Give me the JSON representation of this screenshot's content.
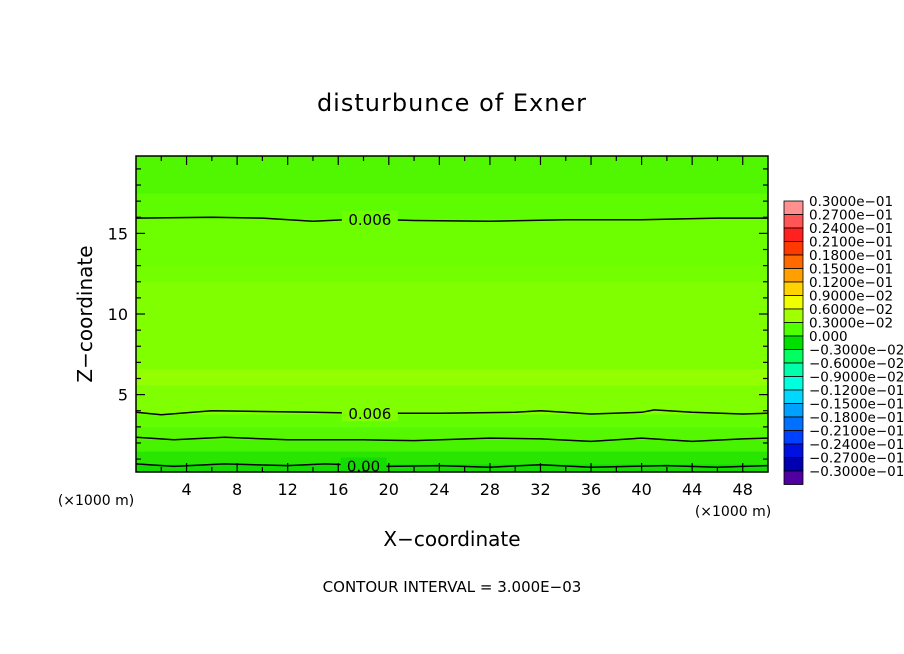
{
  "chart_data": {
    "type": "heatmap",
    "title": "disturbunce of Exner",
    "xlabel": "X−coordinate",
    "ylabel": "Z−coordinate",
    "x_unit_left": "(×1000 m)",
    "x_unit_right": "(×1000 m)",
    "xlim": [
      0,
      50
    ],
    "ylim": [
      0.2,
      19.8
    ],
    "x_ticks": [
      4,
      8,
      12,
      16,
      20,
      24,
      28,
      32,
      36,
      40,
      44,
      48
    ],
    "y_ticks": [
      5,
      10,
      15
    ],
    "grid": false,
    "footer": "CONTOUR INTERVAL = 3.000E−03",
    "bands": [
      {
        "z0": 0.2,
        "z1": 0.7,
        "value": 0.0015
      },
      {
        "z0": 0.7,
        "z1": 1.5,
        "value": 0.003
      },
      {
        "z0": 1.5,
        "z1": 2.2,
        "value": 0.0045
      },
      {
        "z0": 2.2,
        "z1": 3.0,
        "value": 0.0052
      },
      {
        "z0": 3.0,
        "z1": 3.8,
        "value": 0.0058
      },
      {
        "z0": 3.8,
        "z1": 5.6,
        "value": 0.0068
      },
      {
        "z0": 5.6,
        "z1": 6.6,
        "value": 0.0074
      },
      {
        "z0": 6.6,
        "z1": 12.0,
        "value": 0.0068
      },
      {
        "z0": 12.0,
        "z1": 13.0,
        "value": 0.0064
      },
      {
        "z0": 13.0,
        "z1": 15.9,
        "value": 0.0062
      },
      {
        "z0": 15.9,
        "z1": 17.5,
        "value": 0.0056
      },
      {
        "z0": 17.5,
        "z1": 19.8,
        "value": 0.005
      }
    ],
    "contours": [
      {
        "label": "0.006",
        "z": 15.9,
        "label_x": 18.5,
        "points": [
          [
            0,
            15.95
          ],
          [
            6,
            16.0
          ],
          [
            10,
            15.95
          ],
          [
            14,
            15.75
          ],
          [
            18,
            15.9
          ],
          [
            22,
            15.8
          ],
          [
            28,
            15.75
          ],
          [
            34,
            15.85
          ],
          [
            40,
            15.85
          ],
          [
            46,
            15.95
          ],
          [
            50,
            15.95
          ]
        ]
      },
      {
        "label": "",
        "z": 3.8,
        "points": [
          [
            0,
            3.9
          ],
          [
            2,
            3.75
          ],
          [
            6,
            4.0
          ],
          [
            10,
            3.95
          ],
          [
            14,
            3.9
          ],
          [
            18,
            3.85
          ],
          [
            24,
            3.85
          ],
          [
            30,
            3.9
          ],
          [
            32,
            4.0
          ],
          [
            36,
            3.8
          ],
          [
            40,
            3.9
          ],
          [
            41,
            4.05
          ],
          [
            44,
            3.9
          ],
          [
            48,
            3.8
          ],
          [
            50,
            3.85
          ]
        ]
      },
      {
        "label": "",
        "z": 2.2,
        "points": [
          [
            0,
            2.35
          ],
          [
            3,
            2.2
          ],
          [
            7,
            2.35
          ],
          [
            12,
            2.2
          ],
          [
            18,
            2.2
          ],
          [
            22,
            2.15
          ],
          [
            28,
            2.3
          ],
          [
            32,
            2.25
          ],
          [
            36,
            2.1
          ],
          [
            40,
            2.3
          ],
          [
            44,
            2.1
          ],
          [
            48,
            2.25
          ],
          [
            50,
            2.3
          ]
        ]
      },
      {
        "label": "",
        "z": 0.6,
        "points": [
          [
            0,
            0.7
          ],
          [
            3,
            0.55
          ],
          [
            7,
            0.7
          ],
          [
            12,
            0.6
          ],
          [
            15,
            0.7
          ],
          [
            20,
            0.55
          ],
          [
            24,
            0.6
          ],
          [
            28,
            0.5
          ],
          [
            32,
            0.65
          ],
          [
            36,
            0.5
          ],
          [
            42,
            0.6
          ],
          [
            46,
            0.5
          ],
          [
            50,
            0.6
          ]
        ]
      }
    ],
    "extra_labels": [
      {
        "text": "0.006",
        "x": 18.5,
        "z": 3.85
      },
      {
        "text": "0.00",
        "x": 18.0,
        "z": 0.6
      }
    ],
    "legend": {
      "placement": "right",
      "labels": [
        "0.3000e−01",
        "0.2700e−01",
        "0.2400e−01",
        "0.2100e−01",
        "0.1800e−01",
        "0.1500e−01",
        "0.1200e−01",
        "0.9000e−02",
        "0.6000e−02",
        "0.3000e−02",
        "0.000",
        "−0.3000e−02",
        "−0.6000e−02",
        "−0.9000e−02",
        "−0.1200e−01",
        "−0.1500e−01",
        "−0.1800e−01",
        "−0.2100e−01",
        "−0.2400e−01",
        "−0.2700e−01",
        "−0.3000e−01"
      ],
      "colors": [
        "#ff9090",
        "#ff5555",
        "#ff2020",
        "#ff3a00",
        "#ff6a00",
        "#ffa000",
        "#ffd200",
        "#f0ff00",
        "#a0ff00",
        "#50ff00",
        "#00e000",
        "#00ff60",
        "#00ffaa",
        "#00ffdd",
        "#00d8ff",
        "#00a0ff",
        "#0070ff",
        "#0040ff",
        "#0010e0",
        "#0000b0",
        "#5000a0"
      ]
    }
  }
}
